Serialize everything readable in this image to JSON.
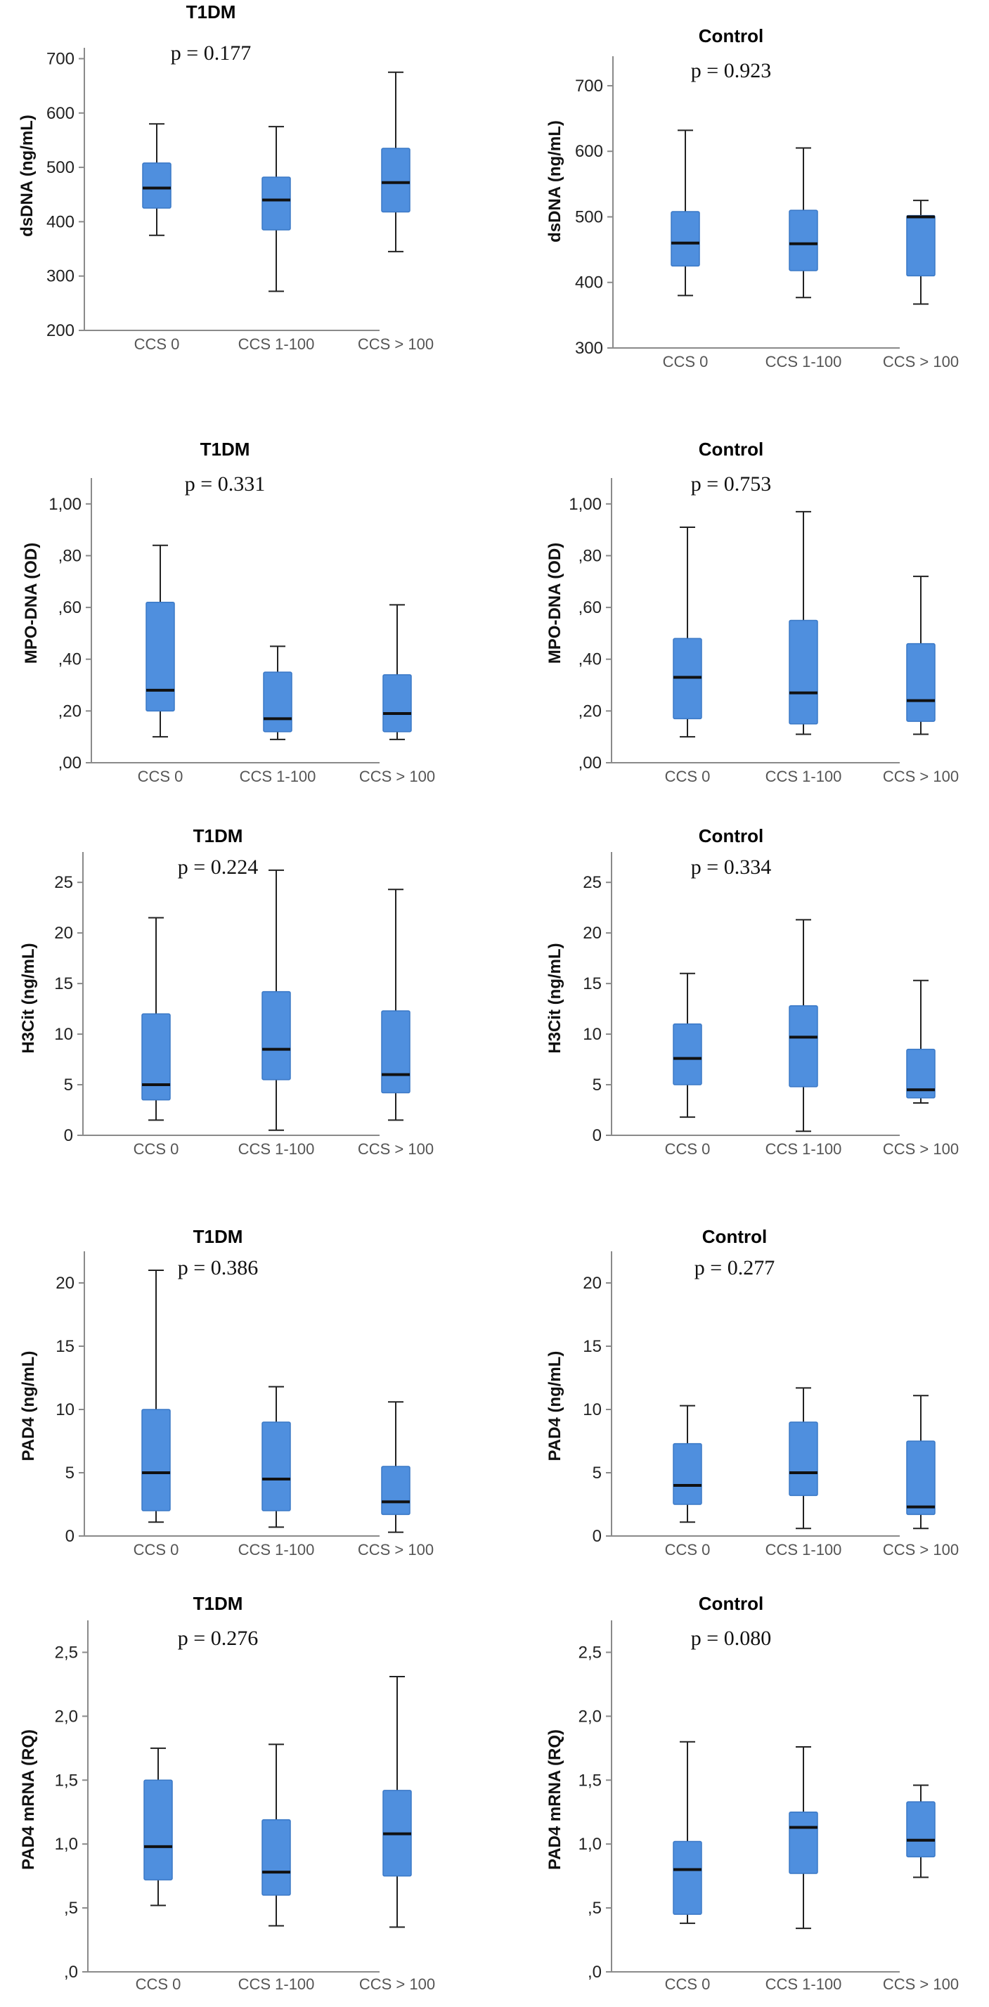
{
  "chart_data": [
    {
      "type": "box",
      "title": "T1DM",
      "p_label": "p = 0.177",
      "ylabel": "dsDNA (ng/mL)",
      "categories": [
        "CCS 0",
        "CCS 1-100",
        "CCS > 100"
      ],
      "ylim": [
        200,
        720
      ],
      "yticks": [
        200,
        300,
        400,
        500,
        600,
        700
      ],
      "ytick_labels": [
        "200",
        "300",
        "400",
        "500",
        "600",
        "700"
      ],
      "boxes": [
        {
          "min": 375,
          "q1": 425,
          "median": 462,
          "q3": 508,
          "max": 580
        },
        {
          "min": 272,
          "q1": 385,
          "median": 440,
          "q3": 482,
          "max": 575
        },
        {
          "min": 345,
          "q1": 418,
          "median": 472,
          "q3": 535,
          "max": 675
        }
      ]
    },
    {
      "type": "box",
      "title": "Control",
      "p_label": "p = 0.923",
      "ylabel": "dsDNA (ng/mL)",
      "categories": [
        "CCS 0",
        "CCS 1-100",
        "CCS > 100"
      ],
      "ylim": [
        300,
        745
      ],
      "yticks": [
        300,
        400,
        500,
        600,
        700
      ],
      "ytick_labels": [
        "300",
        "400",
        "500",
        "600",
        "700"
      ],
      "boxes": [
        {
          "min": 380,
          "q1": 425,
          "median": 460,
          "q3": 508,
          "max": 632
        },
        {
          "min": 377,
          "q1": 418,
          "median": 459,
          "q3": 510,
          "max": 605
        },
        {
          "min": 367,
          "q1": 410,
          "median": 500,
          "q3": 502,
          "max": 525
        }
      ]
    },
    {
      "type": "box",
      "title": "T1DM",
      "p_label": "p = 0.331",
      "ylabel": "MPO-DNA (OD)",
      "categories": [
        "CCS 0",
        "CCS 1-100",
        "CCS > 100"
      ],
      "ylim": [
        0,
        1.1
      ],
      "yticks": [
        0,
        0.2,
        0.4,
        0.6,
        0.8,
        1.0
      ],
      "ytick_labels": [
        ",00",
        ",20",
        ",40",
        ",60",
        ",80",
        "1,00"
      ],
      "boxes": [
        {
          "min": 0.1,
          "q1": 0.2,
          "median": 0.28,
          "q3": 0.62,
          "max": 0.84
        },
        {
          "min": 0.09,
          "q1": 0.12,
          "median": 0.17,
          "q3": 0.35,
          "max": 0.45
        },
        {
          "min": 0.09,
          "q1": 0.12,
          "median": 0.19,
          "q3": 0.34,
          "max": 0.61
        }
      ]
    },
    {
      "type": "box",
      "title": "Control",
      "p_label": "p = 0.753",
      "ylabel": "MPO-DNA (OD)",
      "categories": [
        "CCS 0",
        "CCS 1-100",
        "CCS > 100"
      ],
      "ylim": [
        0,
        1.1
      ],
      "yticks": [
        0,
        0.2,
        0.4,
        0.6,
        0.8,
        1.0
      ],
      "ytick_labels": [
        ",00",
        ",20",
        ",40",
        ",60",
        ",80",
        "1,00"
      ],
      "boxes": [
        {
          "min": 0.1,
          "q1": 0.17,
          "median": 0.33,
          "q3": 0.48,
          "max": 0.91
        },
        {
          "min": 0.11,
          "q1": 0.15,
          "median": 0.27,
          "q3": 0.55,
          "max": 0.97
        },
        {
          "min": 0.11,
          "q1": 0.16,
          "median": 0.24,
          "q3": 0.46,
          "max": 0.72
        }
      ]
    },
    {
      "type": "box",
      "title": "T1DM",
      "p_label": "p = 0.224",
      "ylabel": "H3Cit (ng/mL)",
      "categories": [
        "CCS 0",
        "CCS 1-100",
        "CCS > 100"
      ],
      "ylim": [
        0,
        28
      ],
      "yticks": [
        0,
        5,
        10,
        15,
        20,
        25
      ],
      "ytick_labels": [
        "0",
        "5",
        "10",
        "15",
        "20",
        "25"
      ],
      "boxes": [
        {
          "min": 1.5,
          "q1": 3.5,
          "median": 5.0,
          "q3": 12.0,
          "max": 21.5
        },
        {
          "min": 0.5,
          "q1": 5.5,
          "median": 8.5,
          "q3": 14.2,
          "max": 26.2
        },
        {
          "min": 1.5,
          "q1": 4.2,
          "median": 6.0,
          "q3": 12.3,
          "max": 24.3
        }
      ]
    },
    {
      "type": "box",
      "title": "Control",
      "p_label": "p = 0.334",
      "ylabel": "H3Cit (ng/mL)",
      "categories": [
        "CCS 0",
        "CCS 1-100",
        "CCS > 100"
      ],
      "ylim": [
        0,
        28
      ],
      "yticks": [
        0,
        5,
        10,
        15,
        20,
        25
      ],
      "ytick_labels": [
        "0",
        "5",
        "10",
        "15",
        "20",
        "25"
      ],
      "boxes": [
        {
          "min": 1.8,
          "q1": 5.0,
          "median": 7.6,
          "q3": 11.0,
          "max": 16.0
        },
        {
          "min": 0.4,
          "q1": 4.8,
          "median": 9.7,
          "q3": 12.8,
          "max": 21.3
        },
        {
          "min": 3.2,
          "q1": 3.7,
          "median": 4.5,
          "q3": 8.5,
          "max": 15.3
        }
      ]
    },
    {
      "type": "box",
      "title": "T1DM",
      "p_label": "p = 0.386",
      "ylabel": "PAD4 (ng/mL)",
      "categories": [
        "CCS 0",
        "CCS 1-100",
        "CCS > 100"
      ],
      "ylim": [
        0,
        22.5
      ],
      "yticks": [
        0,
        5,
        10,
        15,
        20
      ],
      "ytick_labels": [
        "0",
        "5",
        "10",
        "15",
        "20"
      ],
      "boxes": [
        {
          "min": 1.1,
          "q1": 2.0,
          "median": 5.0,
          "q3": 10.0,
          "max": 21.0
        },
        {
          "min": 0.7,
          "q1": 2.0,
          "median": 4.5,
          "q3": 9.0,
          "max": 11.8
        },
        {
          "min": 0.3,
          "q1": 1.7,
          "median": 2.7,
          "q3": 5.5,
          "max": 10.6
        }
      ]
    },
    {
      "type": "box",
      "title": "Control",
      "p_label": "p = 0.277",
      "ylabel": "PAD4 (ng/mL)",
      "categories": [
        "CCS 0",
        "CCS 1-100",
        "CCS > 100"
      ],
      "ylim": [
        0,
        22.5
      ],
      "yticks": [
        0,
        5,
        10,
        15,
        20
      ],
      "ytick_labels": [
        "0",
        "5",
        "10",
        "15",
        "20"
      ],
      "boxes": [
        {
          "min": 1.1,
          "q1": 2.5,
          "median": 4.0,
          "q3": 7.3,
          "max": 10.3
        },
        {
          "min": 0.6,
          "q1": 3.2,
          "median": 5.0,
          "q3": 9.0,
          "max": 11.7
        },
        {
          "min": 0.6,
          "q1": 1.7,
          "median": 2.3,
          "q3": 7.5,
          "max": 11.1
        }
      ]
    },
    {
      "type": "box",
      "title": "T1DM",
      "p_label": "p = 0.276",
      "ylabel": "PAD4 mRNA (RQ)",
      "categories": [
        "CCS 0",
        "CCS 1-100",
        "CCS > 100"
      ],
      "ylim": [
        0,
        2.75
      ],
      "yticks": [
        0,
        0.5,
        1.0,
        1.5,
        2.0,
        2.5
      ],
      "ytick_labels": [
        ",0",
        ",5",
        "1,0",
        "1,5",
        "2,0",
        "2,5"
      ],
      "boxes": [
        {
          "min": 0.52,
          "q1": 0.72,
          "median": 0.98,
          "q3": 1.5,
          "max": 1.75
        },
        {
          "min": 0.36,
          "q1": 0.6,
          "median": 0.78,
          "q3": 1.19,
          "max": 1.78
        },
        {
          "min": 0.35,
          "q1": 0.75,
          "median": 1.08,
          "q3": 1.42,
          "max": 2.31
        }
      ]
    },
    {
      "type": "box",
      "title": "Control",
      "p_label": "p = 0.080",
      "ylabel": "PAD4 mRNA (RQ)",
      "categories": [
        "CCS 0",
        "CCS 1-100",
        "CCS > 100"
      ],
      "ylim": [
        0,
        2.75
      ],
      "yticks": [
        0,
        0.5,
        1.0,
        1.5,
        2.0,
        2.5
      ],
      "ytick_labels": [
        ",0",
        ",5",
        "1,0",
        "1,5",
        "2,0",
        "2,5"
      ],
      "boxes": [
        {
          "min": 0.38,
          "q1": 0.45,
          "median": 0.8,
          "q3": 1.02,
          "max": 1.8
        },
        {
          "min": 0.34,
          "q1": 0.77,
          "median": 1.13,
          "q3": 1.25,
          "max": 1.76
        },
        {
          "min": 0.74,
          "q1": 0.9,
          "median": 1.03,
          "q3": 1.33,
          "max": 1.46
        }
      ]
    }
  ],
  "colors": {
    "box_fill": "#4f8fde",
    "box_stroke": "#3a78c6",
    "whisker": "#222222",
    "median": "#111111",
    "axis": "#8a8a8a"
  }
}
